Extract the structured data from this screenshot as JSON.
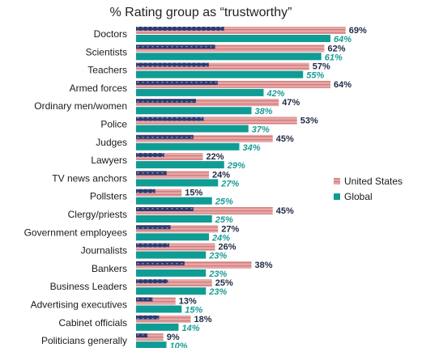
{
  "chart_data": {
    "type": "bar",
    "orientation": "horizontal",
    "title": "% Rating group as “trustworthy”",
    "categories": [
      "Doctors",
      "Scientists",
      "Teachers",
      "Armed forces",
      "Ordinary men/women",
      "Police",
      "Judges",
      "Lawyers",
      "TV news anchors",
      "Pollsters",
      "Clergy/priests",
      "Government employees",
      "Journalists",
      "Bankers",
      "Business Leaders",
      "Advertising executives",
      "Cabinet officials",
      "Politicians generally"
    ],
    "series": [
      {
        "name": "United States",
        "color": "#e8a6a6",
        "label_color": "#1f2a44",
        "values": [
          69,
          62,
          57,
          64,
          47,
          53,
          45,
          22,
          24,
          15,
          45,
          27,
          26,
          38,
          25,
          13,
          18,
          9
        ],
        "labels": [
          "69%",
          "62%",
          "57%",
          "64%",
          "47%",
          "53%",
          "45%",
          "22%",
          "24%",
          "15%",
          "45%",
          "27%",
          "26%",
          "38%",
          "25%",
          "13%",
          "18%",
          "9%"
        ]
      },
      {
        "name": "Global",
        "color": "#0f9c94",
        "label_color": "#1a9c94",
        "values": [
          64,
          61,
          55,
          42,
          38,
          37,
          34,
          29,
          27,
          25,
          25,
          24,
          23,
          23,
          23,
          15,
          14,
          10
        ],
        "labels": [
          "64%",
          "61%",
          "55%",
          "42%",
          "38%",
          "37%",
          "34%",
          "29%",
          "27%",
          "25%",
          "25%",
          "24%",
          "23%",
          "23%",
          "23%",
          "15%",
          "14%",
          "10%"
        ]
      }
    ],
    "xlim": [
      0,
      100
    ],
    "grid": false,
    "legend_position": "right",
    "colors": {
      "us_stripe_light": "#e8a6a6",
      "us_stripe_dark": "#d07c7c",
      "us_canton": "#2e3a6e",
      "global": "#0f9c94"
    }
  }
}
